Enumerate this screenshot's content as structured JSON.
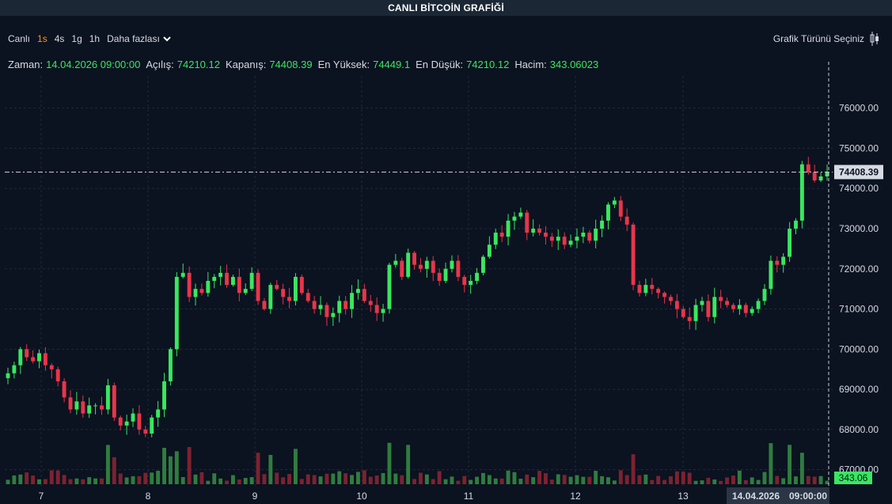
{
  "app": {
    "title": "CANLI BİTCOİN GRAFİĞİ"
  },
  "toolbar": {
    "timeframes": [
      "Canlı",
      "1s",
      "4s",
      "1g",
      "1h"
    ],
    "active_timeframe": "1s",
    "more_label": "Daha fazlası",
    "chart_type_label": "Grafik Türünü Seçiniz"
  },
  "ohlc": {
    "time_label": "Zaman:",
    "time_value": "14.04.2026 09:00:00",
    "open_label": "Açılış:",
    "open_value": "74210.12",
    "close_label": "Kapanış:",
    "close_value": "74408.39",
    "high_label": "En Yüksek:",
    "high_value": "74449.1",
    "low_label": "En Düşük:",
    "low_value": "74210.12",
    "volume_label": "Hacim:",
    "volume_value": "343.06023"
  },
  "colors": {
    "background": "#0b1220",
    "up": "#39e75f",
    "down": "#e8354a",
    "volume_up": "#2f7d3e",
    "volume_down": "#7d2230",
    "grid": "#1f2b3b",
    "price_tag_bg": "#d6dbe3",
    "volume_tag_bg": "#39e75f"
  },
  "chart_data": {
    "type": "candlestick",
    "y_range": [
      66600,
      76800
    ],
    "y_ticks": [
      "76000.00",
      "75000.00",
      "74000.00",
      "73000.00",
      "72000.00",
      "71000.00",
      "70000.00",
      "69000.00",
      "68000.00",
      "67000.00"
    ],
    "x_ticks": [
      "7",
      "8",
      "9",
      "10",
      "11",
      "12",
      "13"
    ],
    "crosshair_x_label": "14.04.2026",
    "crosshair_time_label": "09:00:00",
    "last_price": 74408.39,
    "last_price_label": "74408.39",
    "last_volume_label": "343.06",
    "grid": true,
    "candle_closes_approx": [
      69400,
      69600,
      70000,
      69800,
      69700,
      69900,
      69600,
      69500,
      69200,
      68800,
      68500,
      68700,
      68400,
      68600,
      68600,
      68500,
      69100,
      68300,
      68100,
      68200,
      68400,
      68000,
      67900,
      68300,
      68500,
      69200,
      70000,
      71800,
      71900,
      71300,
      71500,
      71400,
      71700,
      71800,
      71900,
      71600,
      71800,
      71400,
      71500,
      71900,
      71200,
      71000,
      71600,
      71500,
      71300,
      71200,
      71800,
      71400,
      71200,
      71000,
      71100,
      70800,
      70900,
      71200,
      71000,
      71400,
      71500,
      71200,
      71100,
      70900,
      71000,
      72100,
      72200,
      71800,
      72400,
      72100,
      72000,
      72200,
      71900,
      71700,
      72000,
      72200,
      71800,
      71600,
      71700,
      71900,
      72300,
      72600,
      72900,
      72800,
      73200,
      73300,
      73400,
      72900,
      73000,
      72900,
      72800,
      72700,
      72800,
      72600,
      72700,
      72800,
      72900,
      72700,
      73000,
      73200,
      73600,
      73700,
      73300,
      73100,
      71600,
      71400,
      71600,
      71500,
      71400,
      71300,
      71200,
      71000,
      70800,
      70700,
      71100,
      71200,
      70800,
      71300,
      71200,
      71100,
      71000,
      71100,
      70900,
      71000,
      71200,
      71500,
      72200,
      72100,
      72300,
      73000,
      73200,
      74600,
      74400,
      74200,
      74300,
      74408.39
    ]
  }
}
